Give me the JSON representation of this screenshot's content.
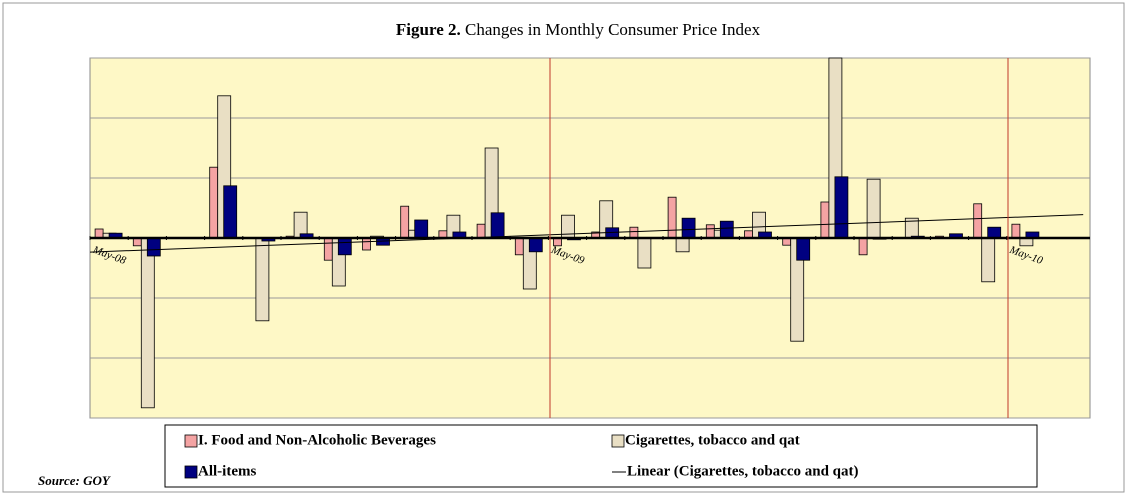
{
  "chart_data": {
    "type": "bar",
    "title_label": "Figure 2.",
    "title": "Changes in Monthly Consumer Price Index",
    "categories": [
      "May-08",
      null,
      null,
      null,
      null,
      null,
      null,
      null,
      null,
      null,
      null,
      null,
      "May-09",
      null,
      null,
      null,
      null,
      null,
      null,
      null,
      null,
      null,
      null,
      null,
      "May-10"
    ],
    "series": [
      {
        "name": "I. Food and Non-Alcoholic Beverages",
        "color": "#f4a3a3",
        "values": [
          0.15,
          -0.13,
          0,
          1.18,
          0,
          0.03,
          -0.37,
          -0.2,
          0.53,
          0.12,
          0.23,
          -0.28,
          -0.13,
          0.1,
          0.18,
          0.68,
          0.22,
          0.12,
          -0.12,
          0.6,
          -0.28,
          0,
          0.03,
          0.57,
          0.23
        ]
      },
      {
        "name": "Cigarettes, tobacco and qat",
        "color": "#e9dfc4",
        "values": [
          0.08,
          -2.83,
          0,
          2.37,
          -1.38,
          0.43,
          -0.8,
          0.03,
          0.13,
          0.38,
          1.5,
          -0.85,
          0.38,
          0.62,
          -0.5,
          -0.23,
          0.13,
          0.43,
          -1.72,
          3.0,
          0.98,
          0.33,
          0,
          -0.73,
          -0.13
        ]
      },
      {
        "name": "All-items",
        "color": "#000080",
        "values": [
          0.08,
          -0.3,
          0,
          0.87,
          -0.05,
          0.07,
          -0.28,
          -0.12,
          0.3,
          0.1,
          0.42,
          -0.23,
          -0.03,
          0.17,
          0,
          0.33,
          0.28,
          0.1,
          -0.37,
          1.02,
          -0.02,
          0.03,
          0.07,
          0.18,
          0.1
        ]
      }
    ],
    "trend_name": "Linear (Cigarettes, tobacco and qat)",
    "ylim": [
      -3,
      3
    ],
    "yticks": [
      -3,
      -2,
      -1,
      0,
      1,
      2,
      3
    ],
    "grid": true,
    "source": "Source: GOY"
  }
}
